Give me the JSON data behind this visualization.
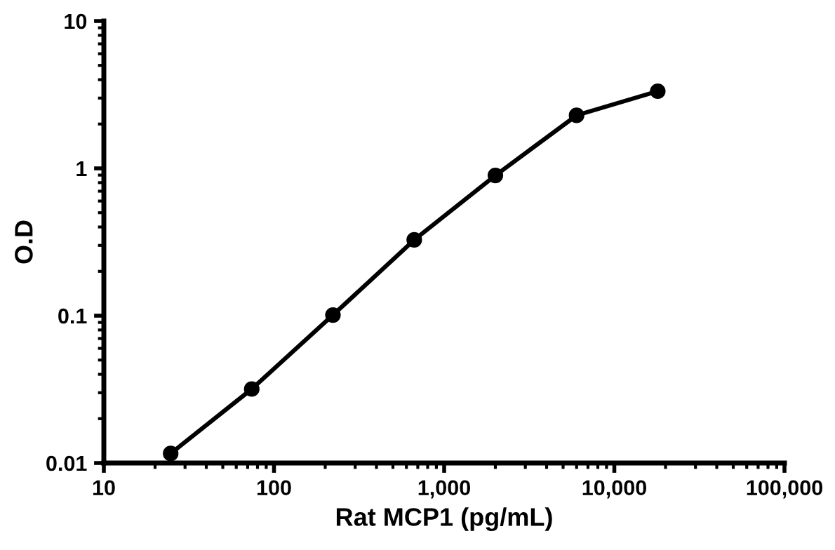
{
  "chart_data": {
    "type": "line",
    "xlabel": "Rat MCP1 (pg/mL)",
    "ylabel": "O.D",
    "x": [
      24.7,
      74,
      222,
      667,
      2000,
      6000,
      18000
    ],
    "series": [
      {
        "color": "#000000",
        "values": [
          0.0116,
          0.0318,
          0.101,
          0.327,
          0.895,
          2.29,
          3.34
        ]
      }
    ],
    "log": "xy",
    "xlim": [
      10,
      100000
    ],
    "ylim": [
      0.01,
      10
    ],
    "xticks": [
      10,
      100,
      {
        "value": 1000,
        "label": "1,000"
      },
      {
        "value": 10000,
        "label": "10,000"
      },
      {
        "value": 100000,
        "label": "100,000"
      }
    ],
    "yticks": [
      0.01,
      0.1,
      1,
      10
    ],
    "grid": false,
    "legend": false,
    "marker": "circle",
    "line_style": "solid"
  }
}
